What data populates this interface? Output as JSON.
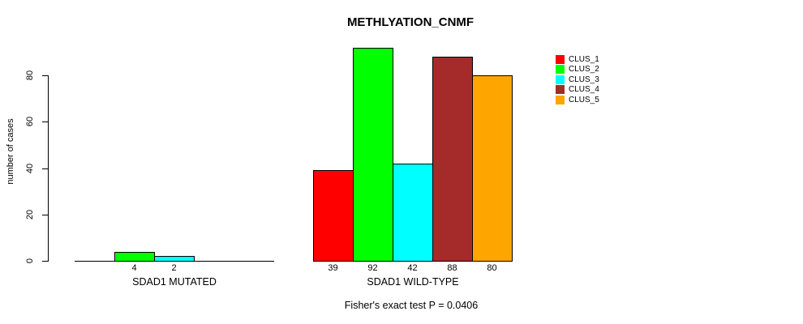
{
  "chart_data": {
    "type": "bar",
    "title": "METHLYATION_CNMF",
    "ylabel": "number of cases",
    "xlabel": "",
    "yticks": [
      0,
      20,
      40,
      60,
      80
    ],
    "ylim": [
      0,
      92
    ],
    "grid": false,
    "legend_position": "right-top",
    "series": [
      {
        "name": "CLUS_1",
        "color": "#FF0000"
      },
      {
        "name": "CLUS_2",
        "color": "#00FF00"
      },
      {
        "name": "CLUS_3",
        "color": "#00FFFF"
      },
      {
        "name": "CLUS_4",
        "color": "#A52A2A"
      },
      {
        "name": "CLUS_5",
        "color": "#FFA500"
      }
    ],
    "groups": [
      {
        "label": "SDAD1 MUTATED",
        "values": [
          0,
          4,
          2,
          0,
          0
        ]
      },
      {
        "label": "SDAD1 WILD-TYPE",
        "values": [
          39,
          92,
          42,
          88,
          80
        ]
      }
    ],
    "annotation": "Fisher's exact test P = 0.0406"
  }
}
